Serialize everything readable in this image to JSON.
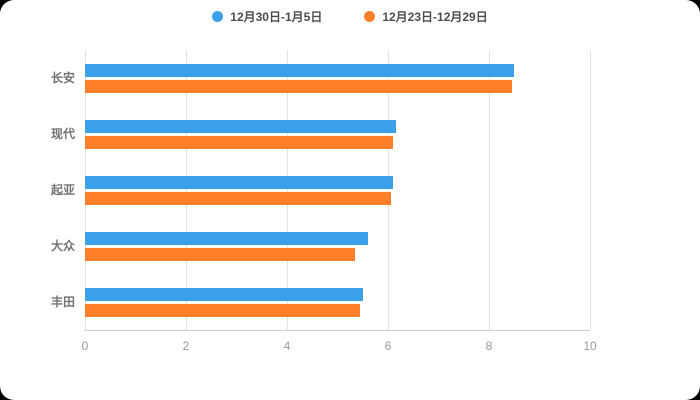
{
  "chart_data": {
    "type": "bar",
    "orientation": "horizontal",
    "title": "",
    "xlabel": "",
    "ylabel": "",
    "categories": [
      "长安",
      "现代",
      "起亚",
      "大众",
      "丰田"
    ],
    "series": [
      {
        "name": "12月30日-1月5日",
        "color": "#3BA0E9",
        "values": [
          8.5,
          6.15,
          6.1,
          5.6,
          5.5
        ]
      },
      {
        "name": "12月23日-12月29日",
        "color": "#FF7F2B",
        "values": [
          8.45,
          6.1,
          6.05,
          5.35,
          5.45
        ]
      }
    ],
    "xlim": [
      0,
      10
    ],
    "xticks": [
      0,
      2,
      4,
      6,
      8,
      10
    ],
    "legend_position": "top",
    "grid": true,
    "colors": {
      "background": "#ffffff",
      "gridline": "#e4e4e4",
      "axis_text": "#999999",
      "category_text": "#737373"
    }
  }
}
